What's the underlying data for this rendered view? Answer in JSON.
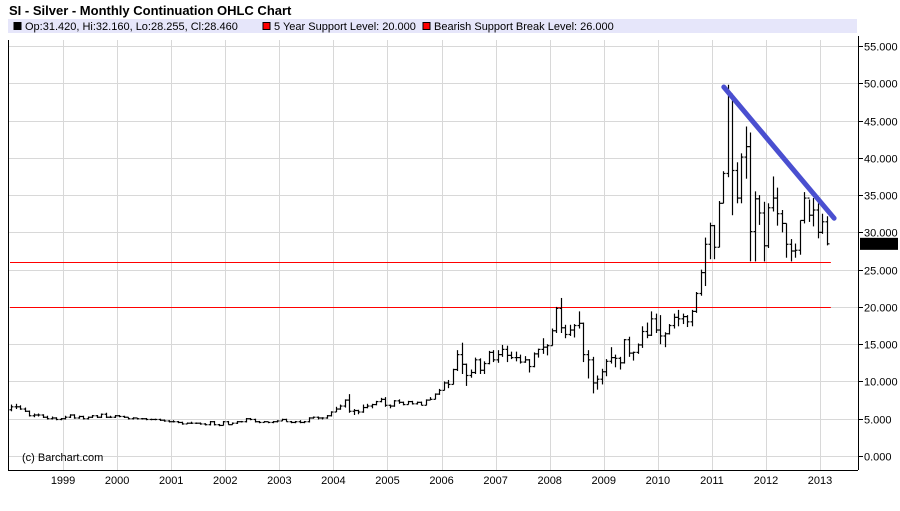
{
  "chart_data": {
    "type": "ohlc",
    "title": "SI - Silver - Monthly Continuation OHLC Chart",
    "legend": [
      {
        "label": "Op:31.420, Hi:32.160, Lo:28.255, Cl:28.460",
        "color": "#000000"
      },
      {
        "label": "5 Year Support Level: 20.000",
        "color": "#ff0000"
      },
      {
        "label": "Bearish Support Break Level: 26.000",
        "color": "#ff0000"
      }
    ],
    "legend_position": "top",
    "watermark": "(c) Barchart.com",
    "ylim": [
      -2.5,
      56.5
    ],
    "y_ticks": [
      "55.000",
      "50.000",
      "45.000",
      "40.000",
      "35.000",
      "30.000",
      "25.000",
      "20.000",
      "15.000",
      "10.000",
      "5.000",
      "0.000"
    ],
    "x_ticks": [
      "1999",
      "2000",
      "2001",
      "2002",
      "2003",
      "2004",
      "2005",
      "2006",
      "2007",
      "2008",
      "2009",
      "2010",
      "2011",
      "2012",
      "2013"
    ],
    "xlim": [
      1998.0,
      2013.65
    ],
    "grid": true,
    "y_axis_side": "right",
    "last_price_label": "28.460",
    "start": "1998-01",
    "frequency": "monthly",
    "open": [
      6.2,
      6.6,
      6.6,
      6.3,
      6.0,
      5.4,
      5.5,
      5.5,
      5.2,
      5.0,
      5.1,
      4.9,
      5.0,
      5.2,
      5.5,
      5.1,
      5.3,
      5.0,
      5.2,
      5.4,
      5.2,
      5.6,
      5.2,
      5.2,
      5.4,
      5.3,
      5.2,
      5.0,
      5.1,
      5.0,
      5.0,
      4.9,
      4.9,
      4.9,
      4.8,
      4.7,
      4.6,
      4.6,
      4.5,
      4.3,
      4.4,
      4.4,
      4.4,
      4.3,
      4.2,
      4.6,
      4.2,
      4.1,
      4.6,
      4.2,
      4.4,
      4.6,
      4.6,
      5.0,
      4.9,
      4.6,
      4.5,
      4.6,
      4.5,
      4.6,
      4.7,
      4.9,
      4.6,
      4.5,
      4.6,
      4.5,
      4.6,
      5.1,
      5.2,
      5.1,
      5.1,
      5.4,
      5.9,
      6.3,
      6.7,
      7.5,
      6.0,
      6.1,
      5.9,
      6.5,
      6.7,
      6.9,
      7.3,
      7.6,
      6.8,
      6.7,
      7.4,
      7.2,
      6.9,
      7.3,
      7.0,
      7.2,
      6.8,
      7.5,
      7.6,
      8.3,
      8.8,
      9.8,
      9.6,
      11.6,
      13.6,
      12.3,
      10.8,
      11.2,
      12.9,
      11.5,
      12.4,
      13.9,
      12.9,
      13.6,
      14.3,
      13.5,
      13.2,
      13.2,
      12.6,
      12.9,
      12.0,
      13.7,
      14.3,
      14.6,
      14.8,
      16.8,
      19.8,
      17.2,
      16.3,
      16.9,
      17.5,
      17.8,
      13.6,
      12.9,
      9.8,
      10.3,
      11.3,
      12.7,
      13.2,
      13.1,
      12.5,
      15.6,
      13.8,
      13.9,
      14.9,
      16.7,
      16.2,
      18.4,
      16.9,
      16.1,
      16.4,
      17.5,
      18.6,
      18.4,
      18.7,
      18.0,
      19.4,
      21.8,
      24.6,
      28.4,
      30.9,
      28.0,
      33.9,
      37.9,
      48.6,
      38.3,
      34.6,
      40.1,
      41.5,
      30.1,
      34.5,
      32.6,
      28.2,
      33.3,
      34.6,
      32.5,
      31.2,
      28.4,
      27.5,
      27.6,
      31.6,
      34.6,
      32.3,
      33.0,
      30.0,
      31.42
    ],
    "high": [
      6.9,
      7.0,
      6.8,
      6.5,
      6.1,
      5.7,
      5.7,
      5.6,
      5.4,
      5.3,
      5.2,
      5.1,
      5.4,
      5.6,
      5.6,
      5.4,
      5.4,
      5.3,
      5.5,
      5.5,
      5.7,
      5.8,
      5.4,
      5.5,
      5.5,
      5.4,
      5.2,
      5.2,
      5.1,
      5.1,
      5.1,
      5.0,
      5.0,
      5.0,
      4.9,
      4.8,
      4.8,
      4.7,
      4.6,
      4.5,
      4.6,
      4.5,
      4.5,
      4.4,
      4.7,
      4.7,
      4.3,
      4.7,
      4.7,
      4.5,
      4.7,
      4.7,
      5.1,
      5.1,
      5.0,
      4.7,
      4.7,
      4.6,
      4.7,
      4.8,
      5.0,
      5.0,
      4.7,
      4.7,
      4.8,
      4.7,
      5.2,
      5.3,
      5.3,
      5.2,
      5.5,
      6.0,
      6.6,
      6.9,
      7.6,
      8.3,
      6.3,
      6.2,
      6.9,
      7.0,
      7.0,
      7.4,
      7.8,
      7.9,
      6.9,
      7.5,
      7.6,
      7.3,
      7.4,
      7.4,
      7.3,
      7.3,
      7.6,
      7.9,
      8.4,
      9.0,
      10.0,
      10.2,
      11.7,
      14.2,
      15.2,
      12.4,
      11.6,
      13.2,
      13.1,
      12.7,
      14.1,
      14.2,
      14.2,
      14.9,
      14.8,
      14.0,
      14.0,
      13.6,
      13.4,
      13.0,
      13.9,
      14.4,
      15.8,
      15.0,
      17.1,
      20.0,
      21.2,
      17.6,
      17.6,
      17.7,
      19.4,
      17.9,
      14.2,
      13.3,
      10.8,
      11.7,
      13.0,
      14.6,
      13.6,
      13.3,
      15.7,
      16.0,
      14.0,
      15.1,
      17.4,
      17.9,
      19.4,
      19.1,
      18.9,
      16.6,
      17.7,
      19.1,
      19.6,
      19.1,
      18.9,
      19.6,
      22.0,
      25.0,
      29.3,
      31.3,
      31.0,
      34.2,
      38.2,
      49.8,
      48.5,
      39.4,
      40.6,
      44.2,
      43.4,
      35.5,
      35.0,
      34.1,
      33.9,
      37.5,
      36.0,
      33.0,
      31.2,
      29.1,
      28.5,
      31.6,
      35.4,
      34.4,
      34.6,
      33.9,
      32.5,
      32.16
    ],
    "low": [
      6.0,
      6.3,
      6.2,
      5.9,
      5.3,
      5.2,
      5.3,
      5.1,
      4.9,
      4.9,
      4.8,
      4.8,
      4.9,
      5.1,
      5.0,
      5.0,
      4.9,
      4.9,
      5.1,
      5.1,
      5.1,
      5.1,
      5.1,
      5.1,
      5.2,
      5.1,
      4.9,
      4.9,
      4.9,
      4.9,
      4.8,
      4.8,
      4.8,
      4.7,
      4.6,
      4.5,
      4.5,
      4.4,
      4.2,
      4.3,
      4.3,
      4.3,
      4.2,
      4.1,
      4.1,
      4.1,
      4.0,
      4.1,
      4.2,
      4.2,
      4.3,
      4.5,
      4.5,
      4.8,
      4.5,
      4.4,
      4.5,
      4.4,
      4.4,
      4.5,
      4.7,
      4.6,
      4.4,
      4.4,
      4.4,
      4.4,
      4.5,
      5.0,
      4.9,
      4.9,
      5.0,
      5.3,
      5.9,
      6.2,
      6.5,
      5.8,
      5.5,
      5.6,
      5.8,
      6.4,
      6.4,
      6.8,
      7.2,
      6.6,
      6.4,
      6.6,
      7.0,
      6.8,
      6.9,
      6.9,
      6.9,
      6.8,
      6.8,
      7.5,
      7.6,
      8.2,
      8.8,
      9.1,
      9.6,
      11.4,
      11.0,
      9.4,
      10.5,
      11.0,
      11.0,
      11.0,
      12.3,
      12.6,
      12.5,
      13.3,
      12.6,
      13.0,
      12.7,
      12.4,
      12.5,
      11.2,
      11.9,
      13.2,
      13.7,
      13.5,
      14.8,
      16.5,
      16.5,
      15.8,
      16.1,
      15.9,
      17.1,
      12.6,
      10.4,
      8.4,
      8.9,
      9.6,
      10.7,
      12.4,
      11.9,
      11.6,
      12.4,
      13.3,
      12.8,
      13.7,
      14.5,
      15.8,
      16.1,
      16.5,
      15.0,
      14.6,
      16.3,
      17.1,
      17.4,
      17.7,
      17.3,
      17.4,
      19.2,
      21.5,
      22.8,
      26.4,
      26.4,
      28.0,
      33.9,
      37.4,
      32.3,
      33.9,
      33.9,
      37.2,
      26.1,
      26.1,
      31.0,
      26.1,
      27.9,
      32.8,
      30.9,
      30.0,
      26.6,
      26.1,
      26.6,
      27.0,
      31.2,
      31.4,
      30.8,
      29.2,
      29.8,
      28.255
    ],
    "close": [
      6.6,
      6.6,
      6.3,
      6.0,
      5.4,
      5.5,
      5.5,
      5.2,
      5.0,
      5.1,
      4.9,
      5.0,
      5.2,
      5.5,
      5.1,
      5.3,
      5.0,
      5.2,
      5.4,
      5.2,
      5.6,
      5.2,
      5.2,
      5.4,
      5.3,
      5.2,
      5.0,
      5.1,
      5.0,
      5.0,
      4.9,
      4.9,
      4.9,
      4.8,
      4.7,
      4.6,
      4.6,
      4.5,
      4.3,
      4.4,
      4.4,
      4.4,
      4.3,
      4.2,
      4.6,
      4.2,
      4.1,
      4.6,
      4.2,
      4.4,
      4.6,
      4.6,
      5.0,
      4.9,
      4.6,
      4.5,
      4.6,
      4.5,
      4.6,
      4.7,
      4.9,
      4.6,
      4.5,
      4.6,
      4.5,
      4.6,
      5.1,
      5.2,
      5.1,
      5.1,
      5.4,
      5.9,
      6.3,
      6.7,
      7.5,
      6.0,
      6.1,
      5.9,
      6.5,
      6.7,
      6.9,
      7.3,
      7.6,
      6.8,
      6.7,
      7.4,
      7.2,
      6.9,
      7.3,
      7.0,
      7.2,
      6.8,
      7.5,
      7.6,
      8.3,
      8.8,
      9.8,
      9.6,
      11.6,
      13.6,
      12.3,
      10.8,
      11.2,
      12.9,
      11.5,
      12.4,
      13.9,
      12.9,
      13.6,
      14.3,
      13.5,
      13.2,
      13.2,
      12.6,
      12.9,
      12.0,
      13.7,
      14.3,
      14.6,
      14.8,
      16.8,
      19.8,
      17.2,
      16.3,
      16.9,
      17.5,
      17.8,
      13.6,
      12.9,
      9.8,
      10.3,
      11.3,
      12.7,
      13.2,
      13.1,
      12.5,
      15.6,
      13.8,
      13.9,
      14.9,
      16.7,
      16.2,
      18.4,
      16.9,
      16.1,
      16.4,
      17.5,
      18.6,
      18.4,
      18.7,
      18.0,
      19.4,
      21.8,
      24.6,
      28.4,
      30.9,
      28.0,
      33.9,
      37.9,
      48.6,
      38.3,
      34.6,
      40.1,
      41.5,
      30.1,
      34.5,
      32.6,
      28.2,
      33.3,
      34.6,
      32.5,
      31.2,
      28.4,
      27.5,
      27.6,
      31.6,
      34.6,
      32.3,
      33.0,
      30.0,
      31.42,
      28.46
    ],
    "horizontal_lines": [
      {
        "value": 20.0,
        "from": 1998.0,
        "to": 2013.2,
        "color": "#ff0000"
      },
      {
        "value": 26.0,
        "from": 1998.0,
        "to": 2013.2,
        "color": "#ff0000"
      }
    ],
    "trendline": {
      "from": [
        2011.22,
        49.5
      ],
      "to": [
        2013.26,
        31.9
      ],
      "color": "#4a4fd0"
    },
    "colors": {
      "bars": "#000000",
      "grid": "#d8d8d8",
      "legend_bg": "#e6e6fa"
    }
  }
}
